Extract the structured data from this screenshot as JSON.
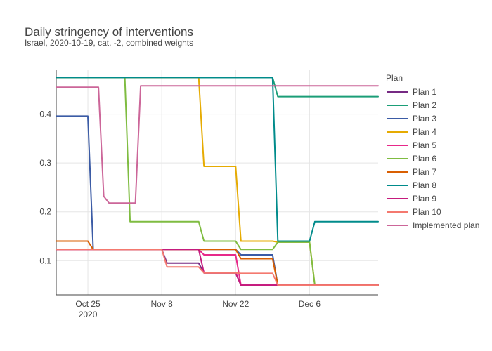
{
  "chart_data": {
    "type": "line",
    "title": "Daily stringency of interventions",
    "subtitle": "Israel, 2020-10-19, cat. -2, combined weights",
    "xlabel": "",
    "ylabel": "",
    "x_start": "2020-10-19",
    "x_range": [
      "2020-10-19",
      "2020-12-19"
    ],
    "xticks": [
      {
        "date": "2020-10-25",
        "label": "Oct 25",
        "sublabel": "2020"
      },
      {
        "date": "2020-11-08",
        "label": "Nov 8",
        "sublabel": ""
      },
      {
        "date": "2020-11-22",
        "label": "Nov 22",
        "sublabel": ""
      },
      {
        "date": "2020-12-06",
        "label": "Dec 6",
        "sublabel": ""
      }
    ],
    "ylim": [
      0.03,
      0.49
    ],
    "yticks": [
      0.1,
      0.2,
      0.3,
      0.4
    ],
    "grid": true,
    "legend_title": "Plan",
    "legend_position": "right",
    "series": [
      {
        "name": "Plan 1",
        "color": "#762a83",
        "x": [
          "2020-10-19",
          "2020-11-08",
          "2020-11-09",
          "2020-11-15",
          "2020-11-16",
          "2020-11-22",
          "2020-11-23",
          "2020-11-29",
          "2020-11-30",
          "2020-12-19"
        ],
        "y": [
          0.123,
          0.123,
          0.095,
          0.095,
          0.075,
          0.075,
          0.05,
          0.05,
          0.05,
          0.05
        ]
      },
      {
        "name": "Plan 2",
        "color": "#1b9e77",
        "x": [
          "2020-10-19",
          "2020-11-29",
          "2020-11-30",
          "2020-12-19"
        ],
        "y": [
          0.475,
          0.475,
          0.436,
          0.436
        ]
      },
      {
        "name": "Plan 3",
        "color": "#3b5ba5",
        "x": [
          "2020-10-19",
          "2020-10-25",
          "2020-10-26",
          "2020-11-22",
          "2020-11-23",
          "2020-11-29",
          "2020-11-30",
          "2020-12-19"
        ],
        "y": [
          0.396,
          0.396,
          0.123,
          0.123,
          0.112,
          0.112,
          0.05,
          0.05
        ]
      },
      {
        "name": "Plan 4",
        "color": "#e6ab02",
        "x": [
          "2020-10-19",
          "2020-11-15",
          "2020-11-16",
          "2020-11-22",
          "2020-11-23",
          "2020-11-29",
          "2020-11-30",
          "2020-12-06",
          "2020-12-07",
          "2020-12-19"
        ],
        "y": [
          0.475,
          0.475,
          0.293,
          0.293,
          0.14,
          0.14,
          0.138,
          0.138,
          0.05,
          0.05
        ]
      },
      {
        "name": "Plan 5",
        "color": "#e7298a",
        "x": [
          "2020-10-19",
          "2020-11-15",
          "2020-11-16",
          "2020-11-22",
          "2020-11-23",
          "2020-11-29",
          "2020-11-30",
          "2020-12-19"
        ],
        "y": [
          0.123,
          0.123,
          0.112,
          0.112,
          0.05,
          0.05,
          0.05,
          0.05
        ]
      },
      {
        "name": "Plan 6",
        "color": "#7fbc41",
        "x": [
          "2020-10-19",
          "2020-11-01",
          "2020-11-02",
          "2020-11-15",
          "2020-11-16",
          "2020-11-22",
          "2020-11-23",
          "2020-11-29",
          "2020-11-30",
          "2020-12-06",
          "2020-12-07",
          "2020-12-19"
        ],
        "y": [
          0.475,
          0.475,
          0.18,
          0.18,
          0.14,
          0.14,
          0.123,
          0.123,
          0.138,
          0.138,
          0.05,
          0.05
        ]
      },
      {
        "name": "Plan 7",
        "color": "#d95f02",
        "x": [
          "2020-10-19",
          "2020-10-25",
          "2020-10-26",
          "2020-11-22",
          "2020-11-23",
          "2020-11-29",
          "2020-11-30",
          "2020-12-19"
        ],
        "y": [
          0.14,
          0.14,
          0.123,
          0.123,
          0.104,
          0.104,
          0.05,
          0.05
        ]
      },
      {
        "name": "Plan 8",
        "color": "#008b8b",
        "x": [
          "2020-10-19",
          "2020-11-29",
          "2020-11-30",
          "2020-12-06",
          "2020-12-07",
          "2020-12-19"
        ],
        "y": [
          0.475,
          0.475,
          0.14,
          0.14,
          0.18,
          0.18
        ]
      },
      {
        "name": "Plan 9",
        "color": "#c51b7d",
        "x": [
          "2020-10-19",
          "2020-11-15",
          "2020-11-16",
          "2020-11-22",
          "2020-11-23",
          "2020-12-19"
        ],
        "y": [
          0.123,
          0.123,
          0.075,
          0.075,
          0.05,
          0.05
        ]
      },
      {
        "name": "Plan 10",
        "color": "#f4796f",
        "x": [
          "2020-10-19",
          "2020-11-08",
          "2020-11-09",
          "2020-11-15",
          "2020-11-16",
          "2020-11-22",
          "2020-11-23",
          "2020-11-29",
          "2020-11-30",
          "2020-12-19"
        ],
        "y": [
          0.123,
          0.123,
          0.087,
          0.087,
          0.075,
          0.075,
          0.074,
          0.074,
          0.05,
          0.05
        ]
      },
      {
        "name": "Implemented plan",
        "color": "#cc6699",
        "x": [
          "2020-10-19",
          "2020-10-27",
          "2020-10-28",
          "2020-10-29",
          "2020-11-02",
          "2020-11-03",
          "2020-11-04",
          "2020-12-19"
        ],
        "y": [
          0.455,
          0.455,
          0.232,
          0.218,
          0.218,
          0.218,
          0.458,
          0.458
        ]
      }
    ]
  }
}
